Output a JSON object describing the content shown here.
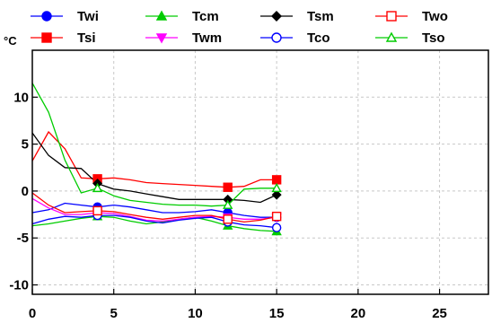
{
  "chart_data": {
    "type": "line",
    "ylabel": "°C",
    "xlim": [
      0,
      28
    ],
    "ylim": [
      -11,
      15
    ],
    "xticks": [
      0,
      5,
      10,
      15,
      20,
      25
    ],
    "yticks": [
      -10,
      -5,
      0,
      5,
      10
    ],
    "grid": true,
    "legend_position": "top",
    "series": [
      {
        "name": "Twi",
        "color": "#0000ff",
        "marker": "filled-circle",
        "x": [
          0,
          1,
          2,
          3,
          4,
          5,
          6,
          7,
          8,
          9,
          10,
          11,
          12,
          13,
          14,
          15
        ],
        "y": [
          -2.3,
          -2.0,
          -1.3,
          -1.5,
          -1.7,
          -1.5,
          -1.7,
          -2.0,
          -2.3,
          -2.3,
          -2.2,
          -2.0,
          -2.3,
          -2.6,
          -2.8,
          -2.8
        ],
        "marker_x": [
          4,
          12,
          15
        ],
        "marker_y": [
          -1.7,
          -2.3,
          -2.8
        ]
      },
      {
        "name": "Tsi",
        "color": "#ff0000",
        "marker": "filled-square",
        "x": [
          0,
          1,
          2,
          3,
          4,
          5,
          6,
          7,
          8,
          9,
          10,
          11,
          12,
          13,
          14,
          15
        ],
        "y": [
          3.2,
          6.3,
          4.5,
          1.4,
          1.3,
          1.4,
          1.2,
          0.9,
          0.8,
          0.7,
          0.6,
          0.5,
          0.4,
          0.5,
          1.2,
          1.2
        ],
        "marker_x": [
          4,
          12,
          15
        ],
        "marker_y": [
          1.3,
          0.4,
          1.2
        ]
      },
      {
        "name": "Tcm",
        "color": "#00cc00",
        "marker": "filled-triangle",
        "x": [
          0,
          1,
          2,
          3,
          4,
          5,
          6,
          7,
          8,
          9,
          10,
          11,
          12,
          13,
          14,
          15
        ],
        "y": [
          -3.7,
          -3.5,
          -3.2,
          -2.9,
          -2.7,
          -2.8,
          -3.2,
          -3.5,
          -3.3,
          -3.0,
          -2.8,
          -3.2,
          -3.7,
          -4.0,
          -4.2,
          -4.3
        ],
        "marker_x": [
          4,
          12,
          15
        ],
        "marker_y": [
          -2.7,
          -3.7,
          -4.3
        ]
      },
      {
        "name": "Twm",
        "color": "#ff00ff",
        "marker": "filled-inverted-triangle",
        "x": [
          0,
          1,
          2,
          3,
          4,
          5,
          6,
          7,
          8,
          9,
          10,
          11,
          12,
          13,
          14,
          15
        ],
        "y": [
          -0.8,
          -1.8,
          -2.5,
          -2.5,
          -2.3,
          -2.4,
          -2.7,
          -3.1,
          -3.2,
          -3.0,
          -2.8,
          -2.7,
          -2.8,
          -3.0,
          -3.0,
          -2.8
        ],
        "marker_x": [
          4,
          12,
          15
        ],
        "marker_y": [
          -2.3,
          -2.8,
          -2.8
        ]
      },
      {
        "name": "Tsm",
        "color": "#000000",
        "marker": "filled-diamond",
        "x": [
          0,
          1,
          2,
          3,
          4,
          5,
          6,
          7,
          8,
          9,
          10,
          11,
          12,
          13,
          14,
          15
        ],
        "y": [
          6.2,
          3.8,
          2.5,
          2.4,
          0.8,
          0.2,
          0.0,
          -0.3,
          -0.6,
          -0.9,
          -0.9,
          -0.9,
          -0.9,
          -1.0,
          -1.2,
          -0.4
        ],
        "marker_x": [
          4,
          12,
          15
        ],
        "marker_y": [
          0.8,
          -0.9,
          -0.4
        ]
      },
      {
        "name": "Tco",
        "color": "#0000ff",
        "marker": "open-circle",
        "x": [
          0,
          1,
          2,
          3,
          4,
          5,
          6,
          7,
          8,
          9,
          10,
          11,
          12,
          13,
          14,
          15
        ],
        "y": [
          -3.5,
          -3.0,
          -2.7,
          -2.8,
          -2.6,
          -2.6,
          -2.8,
          -3.2,
          -3.4,
          -3.1,
          -2.9,
          -2.8,
          -3.3,
          -3.6,
          -3.7,
          -3.9
        ],
        "marker_x": [
          4,
          12,
          15
        ],
        "marker_y": [
          -2.6,
          -3.3,
          -3.9
        ]
      },
      {
        "name": "Two",
        "color": "#ff0000",
        "marker": "open-square",
        "x": [
          0,
          1,
          2,
          3,
          4,
          5,
          6,
          7,
          8,
          9,
          10,
          11,
          12,
          13,
          14,
          15
        ],
        "y": [
          -0.2,
          -1.5,
          -2.3,
          -2.2,
          -2.1,
          -2.2,
          -2.5,
          -2.8,
          -3.0,
          -2.8,
          -2.6,
          -2.6,
          -3.0,
          -3.3,
          -3.1,
          -2.7
        ],
        "marker_x": [
          4,
          12,
          15
        ],
        "marker_y": [
          -2.1,
          -3.0,
          -2.7
        ]
      },
      {
        "name": "Tso",
        "color": "#00cc00",
        "marker": "open-triangle",
        "x": [
          0,
          1,
          2,
          3,
          4,
          5,
          6,
          7,
          8,
          9,
          10,
          11,
          12,
          13,
          14,
          15
        ],
        "y": [
          11.5,
          8.4,
          3.3,
          -0.2,
          0.3,
          -0.5,
          -1.0,
          -1.2,
          -1.4,
          -1.5,
          -1.5,
          -1.6,
          -1.5,
          0.2,
          0.3,
          0.3
        ],
        "marker_x": [
          4,
          12,
          15
        ],
        "marker_y": [
          0.3,
          -1.5,
          0.3
        ]
      }
    ]
  }
}
